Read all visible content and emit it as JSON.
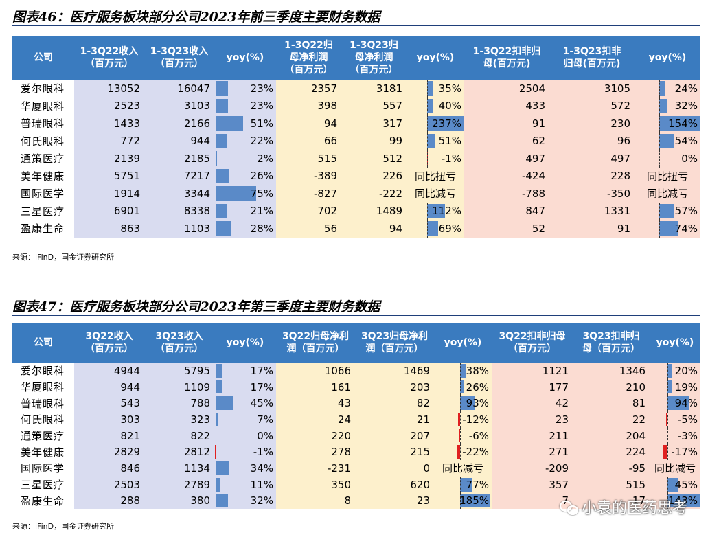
{
  "table1": {
    "title": "图表46：医疗服务板块部分公司2023年前三季度主要财务数据",
    "headers": [
      "公司",
      "1-3Q22收入\n（百万元）",
      "1-3Q23收入\n（百万元）",
      "yoy(%)",
      "1-3Q22归\n母净利润\n（百万元）",
      "1-3Q23归\n母净利润\n（百万元）",
      "yoy(%)",
      "1-3Q22扣非归\n母(百万元)",
      "1-3Q23扣非\n归母(百万元)",
      "yoy(%)"
    ],
    "rows": [
      {
        "name": "爱尔眼科",
        "c1": "13052",
        "c2": "16047",
        "y1": "23%",
        "y1v": 23,
        "c3": "2357",
        "c4": "3181",
        "y2": "35%",
        "y2v": 35,
        "c5": "2504",
        "c6": "3105",
        "y3": "24%",
        "y3v": 24
      },
      {
        "name": "华厦眼科",
        "c1": "2523",
        "c2": "3103",
        "y1": "23%",
        "y1v": 23,
        "c3": "398",
        "c4": "557",
        "y2": "40%",
        "y2v": 40,
        "c5": "433",
        "c6": "572",
        "y3": "32%",
        "y3v": 32
      },
      {
        "name": "普瑞眼科",
        "c1": "1433",
        "c2": "2166",
        "y1": "51%",
        "y1v": 51,
        "c3": "94",
        "c4": "317",
        "y2": "237%",
        "y2v": 237,
        "c5": "91",
        "c6": "230",
        "y3": "154%",
        "y3v": 154
      },
      {
        "name": "何氏眼科",
        "c1": "772",
        "c2": "944",
        "y1": "22%",
        "y1v": 22,
        "c3": "66",
        "c4": "99",
        "y2": "51%",
        "y2v": 51,
        "c5": "62",
        "c6": "96",
        "y3": "54%",
        "y3v": 54
      },
      {
        "name": "通策医疗",
        "c1": "2139",
        "c2": "2185",
        "y1": "2%",
        "y1v": 2,
        "c3": "515",
        "c4": "512",
        "y2": "-1%",
        "y2v": -1,
        "c5": "497",
        "c6": "497",
        "y3": "0%",
        "y3v": 0
      },
      {
        "name": "美年健康",
        "c1": "5751",
        "c2": "7217",
        "y1": "26%",
        "y1v": 26,
        "c3": "-389",
        "c4": "226",
        "y2": "同比扭亏",
        "y2v": null,
        "c5": "-424",
        "c6": "228",
        "y3": "同比扭亏",
        "y3v": null
      },
      {
        "name": "国际医学",
        "c1": "1914",
        "c2": "3344",
        "y1": "75%",
        "y1v": 75,
        "c3": "-827",
        "c4": "-222",
        "y2": "同比减亏",
        "y2v": null,
        "c5": "-788",
        "c6": "-350",
        "y3": "同比减亏",
        "y3v": null
      },
      {
        "name": "三星医疗",
        "c1": "6901",
        "c2": "8338",
        "y1": "21%",
        "y1v": 21,
        "c3": "702",
        "c4": "1489",
        "y2": "112%",
        "y2v": 112,
        "c5": "847",
        "c6": "1331",
        "y3": "57%",
        "y3v": 57
      },
      {
        "name": "盈康生命",
        "c1": "863",
        "c2": "1103",
        "y1": "28%",
        "y1v": 28,
        "c3": "56",
        "c4": "94",
        "y2": "69%",
        "y2v": 69,
        "c5": "52",
        "c6": "91",
        "y3": "74%",
        "y3v": 74
      }
    ],
    "source": "来源：iFinD，国金证券研究所"
  },
  "table2": {
    "title": "图表47：医疗服务板块部分公司2023年第三季度主要财务数据",
    "headers": [
      "公司",
      "3Q22收入\n（百万元）",
      "3Q23收入\n（百万元）",
      "yoy(%)",
      "3Q22归母净利\n润（百万元）",
      "3Q23归母净利\n润（百万元）",
      "yoy(%)",
      "3Q22扣非归母\n（百万元）",
      "3Q23扣非归\n母（百万元）",
      "yoy(%)"
    ],
    "rows": [
      {
        "name": "爱尔眼科",
        "c1": "4944",
        "c2": "5795",
        "y1": "17%",
        "y1v": 17,
        "c3": "1066",
        "c4": "1469",
        "y2": "38%",
        "y2v": 38,
        "c5": "1121",
        "c6": "1346",
        "y3": "20%",
        "y3v": 20
      },
      {
        "name": "华厦眼科",
        "c1": "944",
        "c2": "1109",
        "y1": "17%",
        "y1v": 17,
        "c3": "161",
        "c4": "203",
        "y2": "26%",
        "y2v": 26,
        "c5": "177",
        "c6": "210",
        "y3": "19%",
        "y3v": 19
      },
      {
        "name": "普瑞眼科",
        "c1": "543",
        "c2": "788",
        "y1": "45%",
        "y1v": 45,
        "c3": "43",
        "c4": "82",
        "y2": "93%",
        "y2v": 93,
        "c5": "42",
        "c6": "81",
        "y3": "94%",
        "y3v": 94
      },
      {
        "name": "何氏眼科",
        "c1": "303",
        "c2": "323",
        "y1": "7%",
        "y1v": 7,
        "c3": "24",
        "c4": "21",
        "y2": "-12%",
        "y2v": -12,
        "c5": "23",
        "c6": "22",
        "y3": "-5%",
        "y3v": -5
      },
      {
        "name": "通策医疗",
        "c1": "821",
        "c2": "822",
        "y1": "0%",
        "y1v": 0,
        "c3": "220",
        "c4": "207",
        "y2": "-6%",
        "y2v": -6,
        "c5": "211",
        "c6": "204",
        "y3": "-3%",
        "y3v": -3
      },
      {
        "name": "美年健康",
        "c1": "2829",
        "c2": "2812",
        "y1": "-1%",
        "y1v": -1,
        "c3": "278",
        "c4": "215",
        "y2": "-22%",
        "y2v": -22,
        "c5": "271",
        "c6": "224",
        "y3": "-17%",
        "y3v": -17
      },
      {
        "name": "国际医学",
        "c1": "846",
        "c2": "1134",
        "y1": "34%",
        "y1v": 34,
        "c3": "-231",
        "c4": "0",
        "y2": "同比减亏",
        "y2v": null,
        "c5": "-209",
        "c6": "-95",
        "y3": "同比减亏",
        "y3v": null
      },
      {
        "name": "三星医疗",
        "c1": "2503",
        "c2": "2789",
        "y1": "11%",
        "y1v": 11,
        "c3": "350",
        "c4": "620",
        "y2": "77%",
        "y2v": 77,
        "c5": "357",
        "c6": "515",
        "y3": "45%",
        "y3v": 45
      },
      {
        "name": "盈康生命",
        "c1": "288",
        "c2": "380",
        "y1": "32%",
        "y1v": 32,
        "c3": "8",
        "c4": "23",
        "y2": "185%",
        "y2v": 185,
        "c5": "7",
        "c6": "17",
        "y3": "143%",
        "y3v": 143
      }
    ],
    "source": "来源：iFinD，国金证券研究所"
  },
  "watermark": "小袁的医药思考",
  "colors": {
    "header": "#3a7bbf",
    "revenue_bg": "#d9dcf0",
    "profit_bg": "#fdf0cc",
    "deducted_bg": "#fbdcd2",
    "bar_pos": "#5a8ac8",
    "bar_neg": "#e02020"
  }
}
